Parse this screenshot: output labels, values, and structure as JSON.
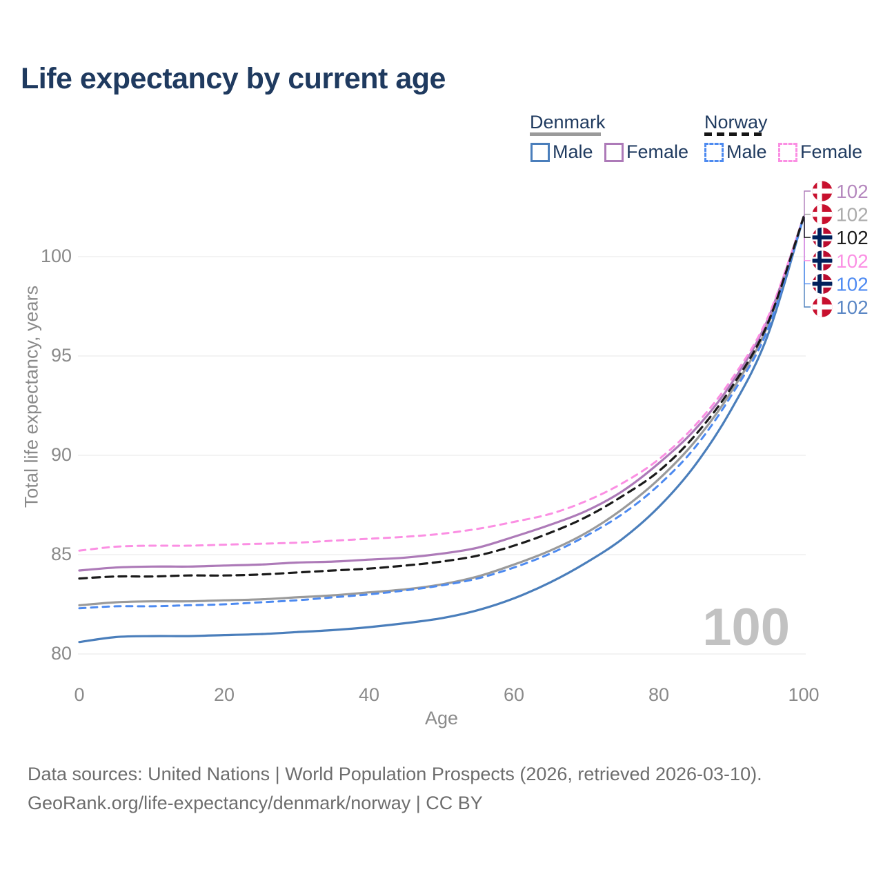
{
  "title": "Life expectancy by current age",
  "legend": {
    "groups": [
      {
        "label": "Denmark",
        "underline_style": "solid",
        "underline_color": "#9a9a9a",
        "items": [
          {
            "label": "Male",
            "swatch_color": "#4a7ebb",
            "swatch_style": "solid"
          },
          {
            "label": "Female",
            "swatch_color": "#ad7ab8",
            "swatch_style": "solid"
          }
        ]
      },
      {
        "label": "Norway",
        "underline_style": "dashed",
        "underline_color": "#151515",
        "items": [
          {
            "label": "Male",
            "swatch_color": "#4d8af0",
            "swatch_style": "dashed"
          },
          {
            "label": "Female",
            "swatch_color": "#fb8fe3",
            "swatch_style": "dashed"
          }
        ]
      }
    ]
  },
  "chart_data": {
    "type": "line",
    "title": "Life expectancy by current age",
    "xlabel": "Age",
    "ylabel": "Total life expectancy, years",
    "xticks": [
      "0",
      "20",
      "40",
      "60",
      "80",
      "100"
    ],
    "yticks": [
      "80",
      "85",
      "90",
      "95",
      "100"
    ],
    "xlim": [
      0,
      100
    ],
    "ylim": [
      79.5,
      103
    ],
    "grid": true,
    "legend_position": "top-right",
    "x": [
      0,
      5,
      10,
      15,
      20,
      25,
      30,
      35,
      40,
      45,
      50,
      55,
      60,
      65,
      70,
      75,
      80,
      85,
      90,
      95,
      100
    ],
    "series": [
      {
        "name": "Denmark Total",
        "country": "Denmark",
        "sex": "Both",
        "line": "solid",
        "color": "#9a9a9a",
        "width": 3.2,
        "dash": null,
        "flag": "denmark",
        "end_label": "102",
        "label_color": "#ababab",
        "label_row": 1,
        "values": [
          82.45,
          82.6,
          82.65,
          82.65,
          82.7,
          82.75,
          82.85,
          82.95,
          83.1,
          83.25,
          83.5,
          83.9,
          84.5,
          85.2,
          86.1,
          87.3,
          88.8,
          90.7,
          93.2,
          96.5,
          102
        ]
      },
      {
        "name": "Denmark Male",
        "country": "Denmark",
        "sex": "Male",
        "line": "solid",
        "color": "#4a7ebb",
        "width": 3.2,
        "dash": null,
        "flag": "denmark",
        "end_label": "102",
        "label_color": "#5b87c5",
        "label_row": 5,
        "values": [
          80.6,
          80.85,
          80.9,
          80.9,
          80.95,
          81.0,
          81.1,
          81.2,
          81.35,
          81.55,
          81.8,
          82.2,
          82.8,
          83.6,
          84.6,
          85.8,
          87.4,
          89.5,
          92.3,
          96.0,
          102
        ]
      },
      {
        "name": "Denmark Female",
        "country": "Denmark",
        "sex": "Female",
        "line": "solid",
        "color": "#ad7ab8",
        "width": 3.2,
        "dash": null,
        "flag": "denmark",
        "end_label": "102",
        "label_color": "#b588be",
        "label_row": 0,
        "values": [
          84.2,
          84.35,
          84.4,
          84.4,
          84.45,
          84.5,
          84.6,
          84.65,
          84.75,
          84.85,
          85.05,
          85.35,
          85.9,
          86.5,
          87.2,
          88.2,
          89.6,
          91.3,
          93.6,
          96.8,
          102
        ]
      },
      {
        "name": "Norway Female",
        "country": "Norway",
        "sex": "Female",
        "line": "dashed",
        "color": "#fb8fe3",
        "width": 3.0,
        "dash": "9 8",
        "flag": "norway",
        "end_label": "102",
        "label_color": "#fb90e4",
        "label_row": 3,
        "values": [
          85.2,
          85.4,
          85.45,
          85.45,
          85.5,
          85.55,
          85.6,
          85.7,
          85.8,
          85.9,
          86.05,
          86.3,
          86.65,
          87.05,
          87.7,
          88.6,
          89.8,
          91.5,
          93.8,
          96.9,
          102
        ]
      },
      {
        "name": "Norway Male",
        "country": "Norway",
        "sex": "Male",
        "line": "dashed",
        "color": "#4d8af0",
        "width": 3.0,
        "dash": "9 8",
        "flag": "norway",
        "end_label": "102",
        "label_color": "#4f8bf2",
        "label_row": 4,
        "values": [
          82.3,
          82.4,
          82.4,
          82.45,
          82.5,
          82.6,
          82.7,
          82.85,
          83.0,
          83.2,
          83.45,
          83.8,
          84.35,
          85.05,
          85.95,
          87.05,
          88.5,
          90.4,
          93.0,
          96.3,
          102
        ]
      },
      {
        "name": "Norway Total",
        "country": "Norway",
        "sex": "Both",
        "line": "dashed",
        "color": "#1a1a1a",
        "width": 3.2,
        "dash": "11 8",
        "flag": "norway",
        "end_label": "102",
        "label_color": "#1c1c1c",
        "label_row": 2,
        "values": [
          83.8,
          83.9,
          83.9,
          83.95,
          83.95,
          84.0,
          84.1,
          84.2,
          84.3,
          84.45,
          84.65,
          84.95,
          85.45,
          86.1,
          86.9,
          87.95,
          89.2,
          91.0,
          93.4,
          96.6,
          102
        ]
      }
    ],
    "colors": {
      "denmark_male": "#4a7ebb",
      "denmark_female": "#ad7ab8",
      "denmark_total": "#9a9a9a",
      "norway_male": "#4d8af0",
      "norway_female": "#fb8fe3",
      "norway_total": "#1a1a1a",
      "denmark_flag_red": "#c8102e",
      "norway_flag_red": "#ba0c2f",
      "norway_flag_blue": "#00205b",
      "gridline": "#ececec",
      "title_text": "#1f3a5f",
      "axis_text": "#8a8a8a"
    }
  },
  "watermark": "100",
  "footer": {
    "line1": "Data sources: United Nations | World Population Prospects (2026, retrieved 2026-03-10).",
    "line2": "GeoRank.org/life-expectancy/denmark/norway | CC BY"
  }
}
